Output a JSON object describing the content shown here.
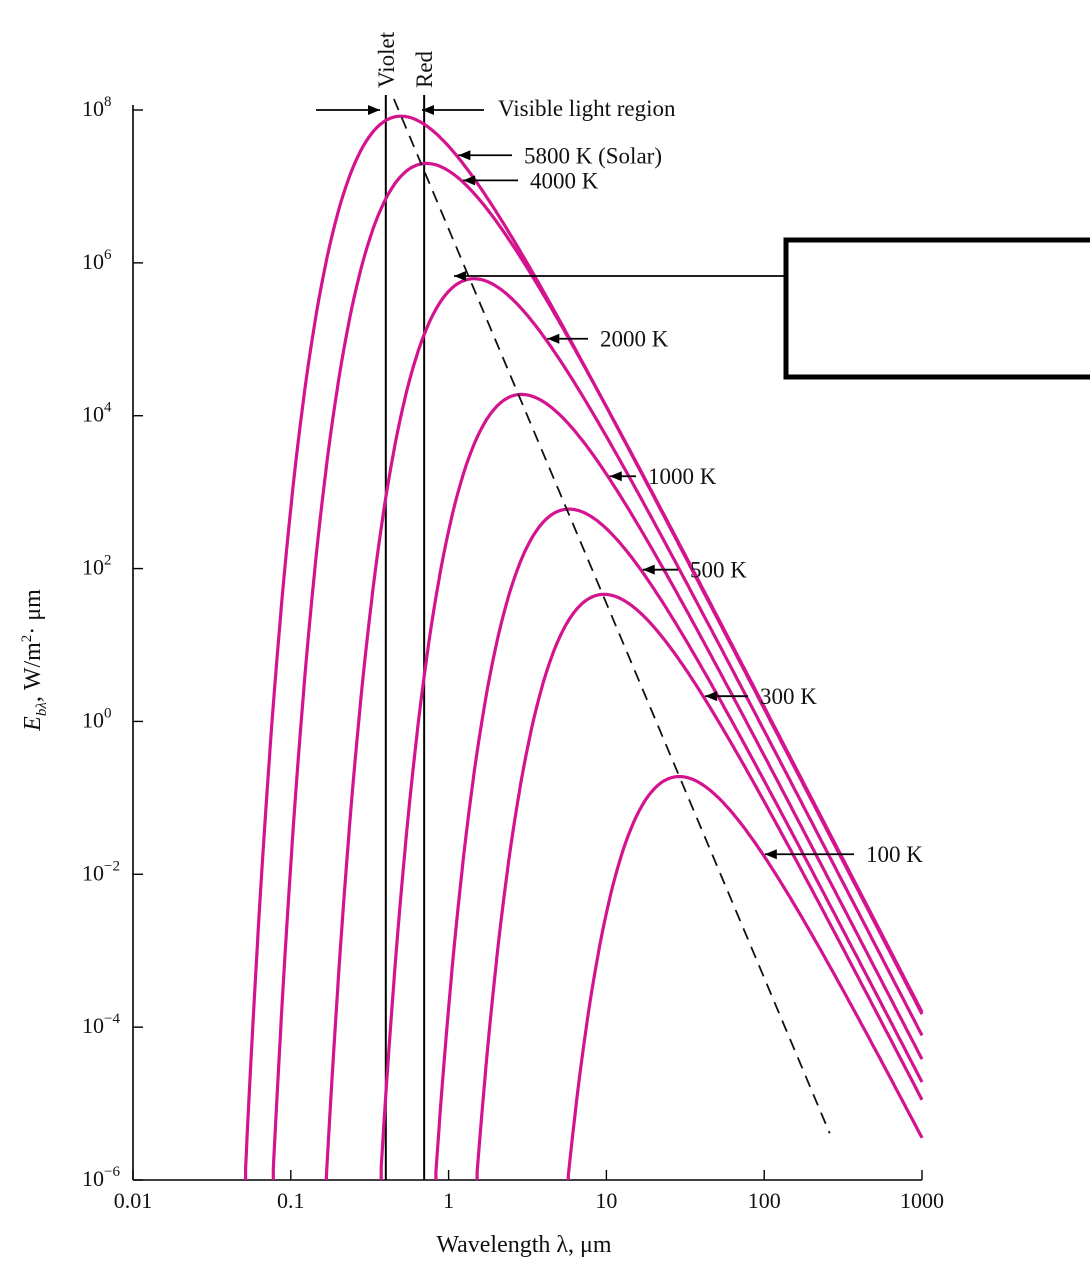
{
  "chart_data": {
    "type": "line",
    "x_scale": "log",
    "y_scale": "log",
    "xlim": [
      0.01,
      1000
    ],
    "ylim": [
      1e-06,
      100000000.0
    ],
    "xlabel": "Wavelength λ, μm",
    "ylabel": "Eᵦλ, W/m²· μm",
    "x_ticks": [
      {
        "value": 0.01,
        "label": "0.01"
      },
      {
        "value": 0.1,
        "label": "0.1"
      },
      {
        "value": 1,
        "label": "1"
      },
      {
        "value": 10,
        "label": "10"
      },
      {
        "value": 100,
        "label": "100"
      },
      {
        "value": 1000,
        "label": "1000"
      }
    ],
    "y_ticks": [
      {
        "value": 100000000.0,
        "base": "10",
        "exp": "8"
      },
      {
        "value": 1000000.0,
        "base": "10",
        "exp": "6"
      },
      {
        "value": 10000.0,
        "base": "10",
        "exp": "4"
      },
      {
        "value": 100.0,
        "base": "10",
        "exp": "2"
      },
      {
        "value": 1.0,
        "base": "10",
        "exp": "0"
      },
      {
        "value": 0.01,
        "base": "10",
        "exp": "−2"
      },
      {
        "value": 0.0001,
        "base": "10",
        "exp": "−4"
      },
      {
        "value": 1e-06,
        "base": "10",
        "exp": "−6"
      }
    ],
    "series": [
      {
        "name": "5800 K (Solar)",
        "temperature": 5800,
        "peak_wavelength": 0.5,
        "peak_value": 83000000.0
      },
      {
        "name": "4000 K",
        "temperature": 4000,
        "peak_wavelength": 0.72,
        "peak_value": 20000000.0
      },
      {
        "name": "2000 K",
        "temperature": 2000,
        "peak_wavelength": 1.45,
        "peak_value": 620000.0
      },
      {
        "name": "1000 K",
        "temperature": 1000,
        "peak_wavelength": 2.9,
        "peak_value": 19000.0
      },
      {
        "name": "500 K",
        "temperature": 500,
        "peak_wavelength": 5.8,
        "peak_value": 600.0
      },
      {
        "name": "300 K",
        "temperature": 300,
        "peak_wavelength": 9.7,
        "peak_value": 46.0
      },
      {
        "name": "100 K",
        "temperature": 100,
        "peak_wavelength": 29,
        "peak_value": 0.19
      }
    ],
    "reference_lines": [
      {
        "name": "Violet",
        "wavelength": 0.4
      },
      {
        "name": "Red",
        "wavelength": 0.7
      }
    ],
    "annotations": {
      "visible_region": "Visible light region",
      "wien_line": "dashed line through curve peaks"
    },
    "colors": {
      "curves": "#d4148f",
      "axes": "#000000"
    },
    "grid": false
  }
}
